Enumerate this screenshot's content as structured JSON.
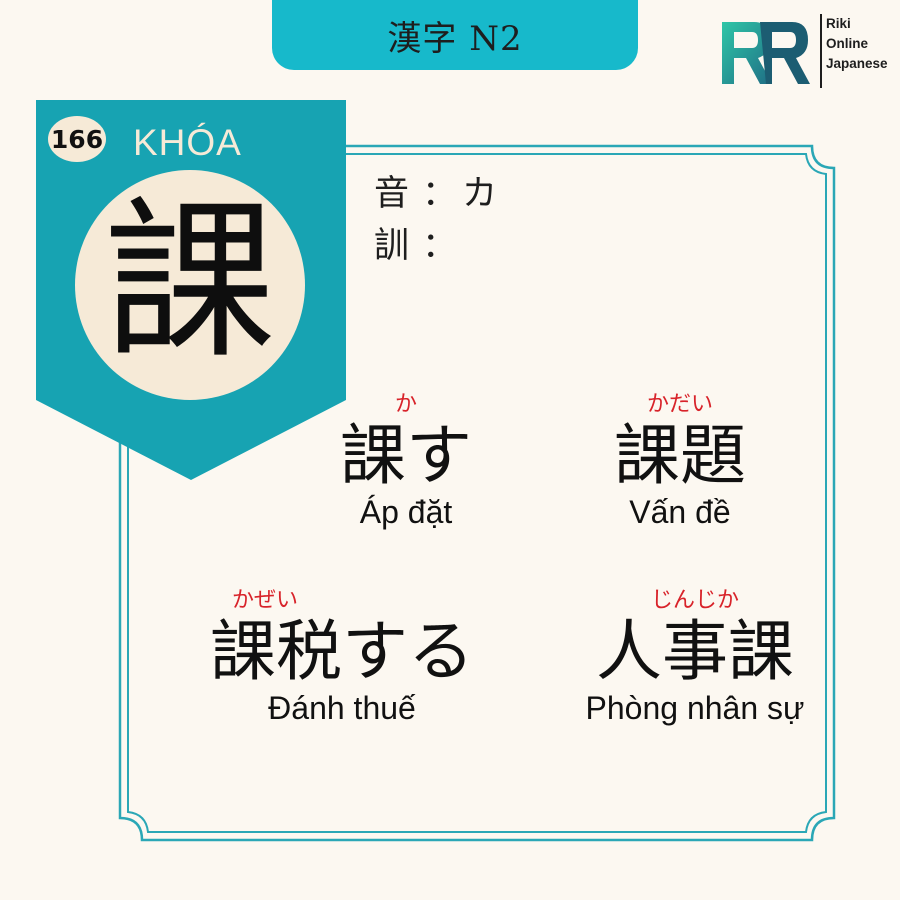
{
  "header": {
    "title": "漢字 N2"
  },
  "brand": {
    "line1": "Riki",
    "line2": "Online",
    "line3": "Japanese"
  },
  "card": {
    "number": "166",
    "han_viet": "KHÓA",
    "kanji": "課",
    "on_label": "音",
    "on_colon": "：",
    "on_value": "カ",
    "kun_label": "訓",
    "kun_colon": "：",
    "kun_value": ""
  },
  "vocab": [
    {
      "furigana": "か",
      "word": "課す",
      "meaning": "Áp đặt"
    },
    {
      "furigana": "かだい",
      "word": "課題",
      "meaning": "Vấn đề"
    },
    {
      "furigana": "かぜい",
      "word": "課税する",
      "meaning": "Đánh thuế"
    },
    {
      "furigana": "じんじか",
      "word": "人事課",
      "meaning": "Phòng nhân sự"
    }
  ],
  "colors": {
    "accent": "#17b9cb",
    "ribbon": "#17a3b2",
    "cream": "#f6ead7",
    "furigana": "#d8232a",
    "background": "#fcf8f1"
  }
}
